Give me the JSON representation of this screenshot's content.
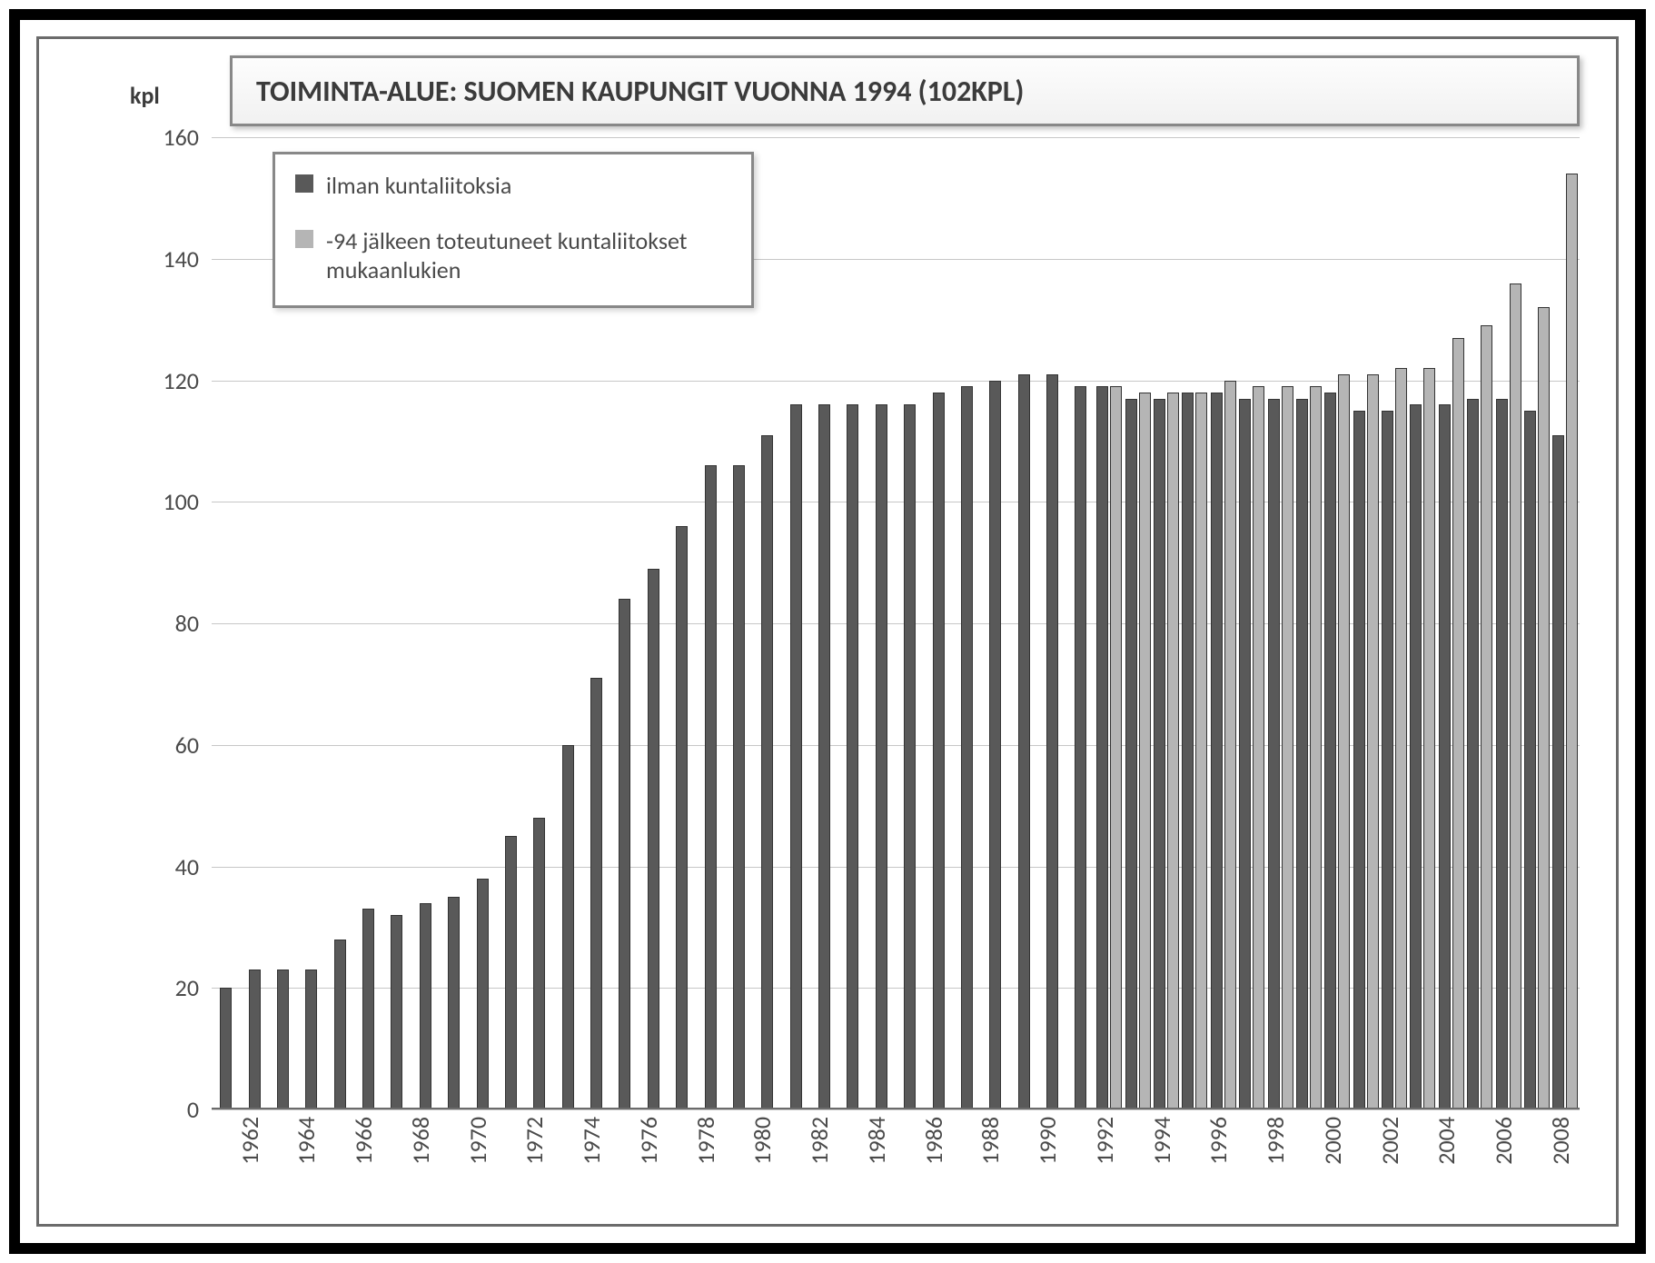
{
  "title": "TOIMINTA-ALUE: SUOMEN KAUPUNGIT VUONNA 1994 (102KPL)",
  "ylabel": "kpl",
  "legend": {
    "items": [
      {
        "label": "ilman kuntaliitoksia",
        "color": "#595959"
      },
      {
        "label": "-94 jälkeen toteutuneet kuntaliitokset mukaanlukien",
        "color": "#b5b5b5"
      }
    ]
  },
  "chart": {
    "type": "bar",
    "ylim": [
      0,
      160
    ],
    "ytick_step": 20,
    "yticks": [
      0,
      20,
      40,
      60,
      80,
      100,
      120,
      140,
      160
    ],
    "grid_color": "#c7c7c7",
    "background_color": "#ffffff",
    "series": [
      {
        "name": "ilman",
        "color": "#595959"
      },
      {
        "name": "mukaanlukien",
        "color": "#b5b5b5"
      }
    ],
    "years": [
      1962,
      1963,
      1964,
      1965,
      1966,
      1967,
      1968,
      1969,
      1970,
      1971,
      1972,
      1973,
      1974,
      1975,
      1976,
      1977,
      1978,
      1979,
      1980,
      1981,
      1982,
      1983,
      1984,
      1985,
      1986,
      1987,
      1988,
      1989,
      1990,
      1991,
      1992,
      1993,
      1994,
      1995,
      1996,
      1997,
      1998,
      1999,
      2000,
      2001,
      2002,
      2003,
      2004,
      2005,
      2006,
      2007,
      2008,
      2009
    ],
    "xtick_labels": [
      "1962",
      "",
      "1964",
      "",
      "1966",
      "",
      "1968",
      "",
      "1970",
      "",
      "1972",
      "",
      "1974",
      "",
      "1976",
      "",
      "1978",
      "",
      "1980",
      "",
      "1982",
      "",
      "1984",
      "",
      "1986",
      "",
      "1988",
      "",
      "1990",
      "",
      "1992",
      "",
      "1994",
      "",
      "1996",
      "",
      "1998",
      "",
      "2000",
      "",
      "2002",
      "",
      "2004",
      "",
      "2006",
      "",
      "2008",
      ""
    ],
    "data": [
      {
        "y": 1962,
        "a": 20,
        "b": null
      },
      {
        "y": 1963,
        "a": 23,
        "b": null
      },
      {
        "y": 1964,
        "a": 23,
        "b": null
      },
      {
        "y": 1965,
        "a": 23,
        "b": null
      },
      {
        "y": 1966,
        "a": 28,
        "b": null
      },
      {
        "y": 1967,
        "a": 33,
        "b": null
      },
      {
        "y": 1968,
        "a": 32,
        "b": null
      },
      {
        "y": 1969,
        "a": 34,
        "b": null
      },
      {
        "y": 1970,
        "a": 35,
        "b": null
      },
      {
        "y": 1971,
        "a": 38,
        "b": null
      },
      {
        "y": 1972,
        "a": 45,
        "b": null
      },
      {
        "y": 1973,
        "a": 48,
        "b": null
      },
      {
        "y": 1974,
        "a": 60,
        "b": null
      },
      {
        "y": 1975,
        "a": 71,
        "b": null
      },
      {
        "y": 1976,
        "a": 84,
        "b": null
      },
      {
        "y": 1977,
        "a": 89,
        "b": null
      },
      {
        "y": 1978,
        "a": 96,
        "b": null
      },
      {
        "y": 1979,
        "a": 106,
        "b": null
      },
      {
        "y": 1980,
        "a": 106,
        "b": null
      },
      {
        "y": 1981,
        "a": 111,
        "b": null
      },
      {
        "y": 1982,
        "a": 116,
        "b": null
      },
      {
        "y": 1983,
        "a": 116,
        "b": null
      },
      {
        "y": 1984,
        "a": 116,
        "b": null
      },
      {
        "y": 1985,
        "a": 116,
        "b": null
      },
      {
        "y": 1986,
        "a": 116,
        "b": null
      },
      {
        "y": 1987,
        "a": 118,
        "b": null
      },
      {
        "y": 1988,
        "a": 119,
        "b": null
      },
      {
        "y": 1989,
        "a": 120,
        "b": null
      },
      {
        "y": 1990,
        "a": 121,
        "b": null
      },
      {
        "y": 1991,
        "a": 121,
        "b": null
      },
      {
        "y": 1992,
        "a": 119,
        "b": null
      },
      {
        "y": 1993,
        "a": 119,
        "b": 119
      },
      {
        "y": 1994,
        "a": 117,
        "b": 118
      },
      {
        "y": 1995,
        "a": 117,
        "b": 118
      },
      {
        "y": 1996,
        "a": 118,
        "b": 118
      },
      {
        "y": 1997,
        "a": 118,
        "b": 120
      },
      {
        "y": 1998,
        "a": 117,
        "b": 119
      },
      {
        "y": 1999,
        "a": 117,
        "b": 119
      },
      {
        "y": 2000,
        "a": 117,
        "b": 119
      },
      {
        "y": 2001,
        "a": 118,
        "b": 121
      },
      {
        "y": 2002,
        "a": 115,
        "b": 121
      },
      {
        "y": 2003,
        "a": 115,
        "b": 122
      },
      {
        "y": 2004,
        "a": 116,
        "b": 122
      },
      {
        "y": 2005,
        "a": 116,
        "b": 127
      },
      {
        "y": 2006,
        "a": 117,
        "b": 129
      },
      {
        "y": 2007,
        "a": 117,
        "b": 136
      },
      {
        "y": 2008,
        "a": 115,
        "b": 132
      },
      {
        "y": 2009,
        "a": 111,
        "b": 154
      }
    ],
    "title_fontsize": 32,
    "label_fontsize": 26,
    "tick_fontsize": 26,
    "legend_fontsize": 26
  }
}
